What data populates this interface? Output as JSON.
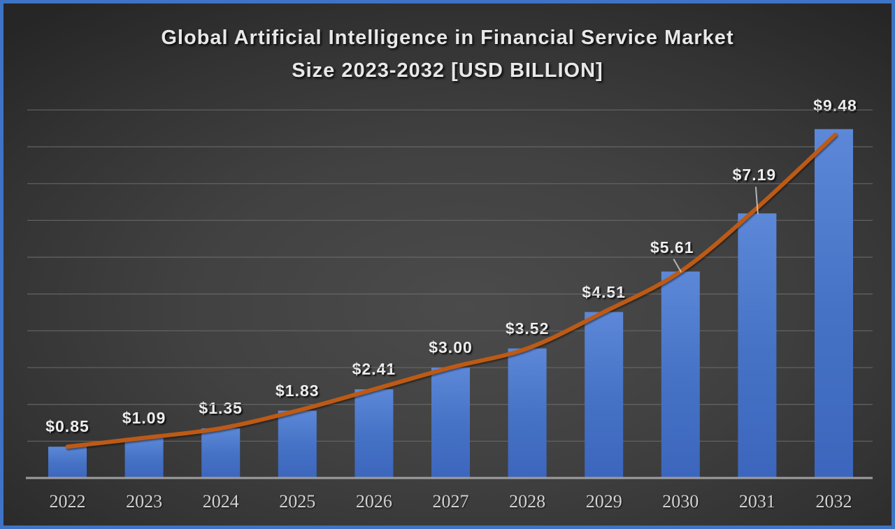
{
  "chart_data": {
    "type": "bar",
    "title": "Global Artificial Intelligence in Financial Service Market Size 2023-2032 [USD BILLION]",
    "title_lines": [
      "Global Artificial Intelligence in Financial Service Market",
      "Size 2023-2032 [USD BILLION]"
    ],
    "categories": [
      "2022",
      "2023",
      "2024",
      "2025",
      "2026",
      "2027",
      "2028",
      "2029",
      "2030",
      "2031",
      "2032"
    ],
    "values": [
      0.85,
      1.09,
      1.35,
      1.83,
      2.41,
      3.0,
      3.52,
      4.51,
      5.61,
      7.19,
      9.48
    ],
    "data_labels": [
      "$0.85",
      "$1.09",
      "$1.35",
      "$1.83",
      "$2.41",
      "$3.00",
      "$3.52",
      "$4.51",
      "$5.61",
      "$7.19",
      "$9.48"
    ],
    "xlabel": "",
    "ylabel": "",
    "ylim": [
      0,
      10
    ],
    "y_gridline_interval": 1,
    "grid": true,
    "legend": "none",
    "y_axis_labels_visible": false,
    "trendline": {
      "shape": "smooth-exponential",
      "color": "#bd5a15",
      "line_dy": [
        0,
        0,
        0,
        0,
        0,
        0,
        0,
        0,
        0,
        -8,
        8
      ]
    },
    "annotations": {
      "default_label_gap": 15,
      "callouts": [
        {
          "index": 8,
          "dx": -12,
          "gap": 21,
          "leader": true
        },
        {
          "index": 9,
          "dx": -4,
          "gap": 41,
          "leader": true
        },
        {
          "index": 10,
          "dx": 2,
          "gap": 20,
          "leader": false
        }
      ]
    },
    "colors": {
      "bar_top": "#5d88d8",
      "bar_mid": "#4673c6",
      "bar_bottom": "#3c66bd",
      "trend_line": "#bd5a15",
      "leader_line": "#c9c9c9",
      "axis_line": "#9e9e9e",
      "gridline": "#6b6b6b",
      "value_label": "#ededed",
      "year_label": "#d2d2d2",
      "title": "#e8e8e8",
      "frame_border": "#3e73c5"
    }
  }
}
